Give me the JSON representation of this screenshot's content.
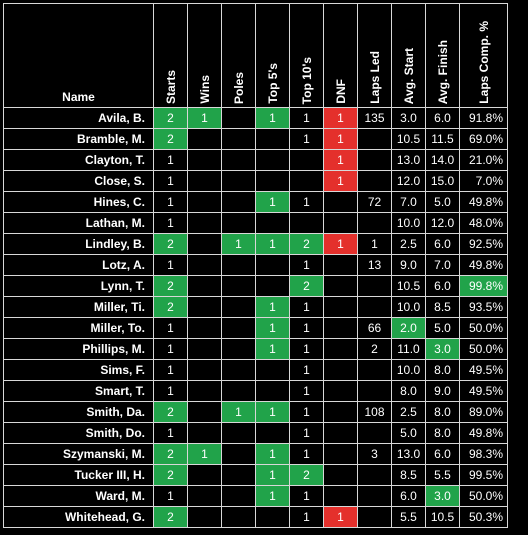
{
  "headers": {
    "name": "Name",
    "starts": "Starts",
    "wins": "Wins",
    "poles": "Poles",
    "top5": "Top 5's",
    "top10": "Top 10's",
    "dnf": "DNF",
    "laps_led": "Laps Led",
    "avg_start": "Avg. Start",
    "avg_finish": "Avg. Finish",
    "laps_comp": "Laps Comp. %"
  },
  "colors": {
    "highlight_green": "#21a34a",
    "highlight_red": "#e4302c"
  },
  "rows": [
    {
      "name": "Avila, B.",
      "starts": "2",
      "wins": "1",
      "poles": "",
      "top5": "1",
      "top10": "1",
      "dnf": "1",
      "laps_led": "135",
      "avg_start": "3.0",
      "avg_finish": "6.0",
      "laps_comp": "91.8%"
    },
    {
      "name": "Bramble, M.",
      "starts": "2",
      "wins": "",
      "poles": "",
      "top5": "",
      "top10": "1",
      "dnf": "1",
      "laps_led": "",
      "avg_start": "10.5",
      "avg_finish": "11.5",
      "laps_comp": "69.0%"
    },
    {
      "name": "Clayton, T.",
      "starts": "1",
      "wins": "",
      "poles": "",
      "top5": "",
      "top10": "",
      "dnf": "1",
      "laps_led": "",
      "avg_start": "13.0",
      "avg_finish": "14.0",
      "laps_comp": "21.0%"
    },
    {
      "name": "Close, S.",
      "starts": "1",
      "wins": "",
      "poles": "",
      "top5": "",
      "top10": "",
      "dnf": "1",
      "laps_led": "",
      "avg_start": "12.0",
      "avg_finish": "15.0",
      "laps_comp": "7.0%"
    },
    {
      "name": "Hines, C.",
      "starts": "1",
      "wins": "",
      "poles": "",
      "top5": "1",
      "top10": "1",
      "dnf": "",
      "laps_led": "72",
      "avg_start": "7.0",
      "avg_finish": "5.0",
      "laps_comp": "49.8%"
    },
    {
      "name": "Lathan, M.",
      "starts": "1",
      "wins": "",
      "poles": "",
      "top5": "",
      "top10": "",
      "dnf": "",
      "laps_led": "",
      "avg_start": "10.0",
      "avg_finish": "12.0",
      "laps_comp": "48.0%"
    },
    {
      "name": "Lindley, B.",
      "starts": "2",
      "wins": "",
      "poles": "1",
      "top5": "1",
      "top10": "2",
      "dnf": "1",
      "laps_led": "1",
      "avg_start": "2.5",
      "avg_finish": "6.0",
      "laps_comp": "92.5%"
    },
    {
      "name": "Lotz, A.",
      "starts": "1",
      "wins": "",
      "poles": "",
      "top5": "",
      "top10": "1",
      "dnf": "",
      "laps_led": "13",
      "avg_start": "9.0",
      "avg_finish": "7.0",
      "laps_comp": "49.8%"
    },
    {
      "name": "Lynn, T.",
      "starts": "2",
      "wins": "",
      "poles": "",
      "top5": "",
      "top10": "2",
      "dnf": "",
      "laps_led": "",
      "avg_start": "10.5",
      "avg_finish": "6.0",
      "laps_comp": "99.8%"
    },
    {
      "name": "Miller, Ti.",
      "starts": "2",
      "wins": "",
      "poles": "",
      "top5": "1",
      "top10": "1",
      "dnf": "",
      "laps_led": "",
      "avg_start": "10.0",
      "avg_finish": "8.5",
      "laps_comp": "93.5%"
    },
    {
      "name": "Miller, To.",
      "starts": "1",
      "wins": "",
      "poles": "",
      "top5": "1",
      "top10": "1",
      "dnf": "",
      "laps_led": "66",
      "avg_start": "2.0",
      "avg_finish": "5.0",
      "laps_comp": "50.0%"
    },
    {
      "name": "Phillips, M.",
      "starts": "1",
      "wins": "",
      "poles": "",
      "top5": "1",
      "top10": "1",
      "dnf": "",
      "laps_led": "2",
      "avg_start": "11.0",
      "avg_finish": "3.0",
      "laps_comp": "50.0%"
    },
    {
      "name": "Sims, F.",
      "starts": "1",
      "wins": "",
      "poles": "",
      "top5": "",
      "top10": "1",
      "dnf": "",
      "laps_led": "",
      "avg_start": "10.0",
      "avg_finish": "8.0",
      "laps_comp": "49.5%"
    },
    {
      "name": "Smart, T.",
      "starts": "1",
      "wins": "",
      "poles": "",
      "top5": "",
      "top10": "1",
      "dnf": "",
      "laps_led": "",
      "avg_start": "8.0",
      "avg_finish": "9.0",
      "laps_comp": "49.5%"
    },
    {
      "name": "Smith, Da.",
      "starts": "2",
      "wins": "",
      "poles": "1",
      "top5": "1",
      "top10": "1",
      "dnf": "",
      "laps_led": "108",
      "avg_start": "2.5",
      "avg_finish": "8.0",
      "laps_comp": "89.0%"
    },
    {
      "name": "Smith, Do.",
      "starts": "1",
      "wins": "",
      "poles": "",
      "top5": "",
      "top10": "1",
      "dnf": "",
      "laps_led": "",
      "avg_start": "5.0",
      "avg_finish": "8.0",
      "laps_comp": "49.8%"
    },
    {
      "name": "Szymanski, M.",
      "starts": "2",
      "wins": "1",
      "poles": "",
      "top5": "1",
      "top10": "1",
      "dnf": "",
      "laps_led": "3",
      "avg_start": "13.0",
      "avg_finish": "6.0",
      "laps_comp": "98.3%"
    },
    {
      "name": "Tucker III, H.",
      "starts": "2",
      "wins": "",
      "poles": "",
      "top5": "1",
      "top10": "2",
      "dnf": "",
      "laps_led": "",
      "avg_start": "8.5",
      "avg_finish": "5.5",
      "laps_comp": "99.5%"
    },
    {
      "name": "Ward, M.",
      "starts": "1",
      "wins": "",
      "poles": "",
      "top5": "1",
      "top10": "1",
      "dnf": "",
      "laps_led": "",
      "avg_start": "6.0",
      "avg_finish": "3.0",
      "laps_comp": "50.0%"
    },
    {
      "name": "Whitehead, G.",
      "starts": "2",
      "wins": "",
      "poles": "",
      "top5": "",
      "top10": "1",
      "dnf": "1",
      "laps_led": "",
      "avg_start": "5.5",
      "avg_finish": "10.5",
      "laps_comp": "50.3%"
    }
  ],
  "highlights": {
    "green": [
      "0.starts",
      "0.wins",
      "0.top5",
      "1.starts",
      "4.top5",
      "6.starts",
      "6.poles",
      "6.top5",
      "6.top10",
      "8.starts",
      "8.top10",
      "8.laps_comp",
      "9.starts",
      "9.top5",
      "10.top5",
      "10.avg_start",
      "11.top5",
      "11.avg_finish",
      "14.starts",
      "14.poles",
      "14.top5",
      "16.starts",
      "16.wins",
      "16.top5",
      "17.starts",
      "17.top5",
      "17.top10",
      "18.top5",
      "18.avg_finish",
      "19.starts"
    ],
    "red": [
      "0.dnf",
      "1.dnf",
      "2.dnf",
      "3.dnf",
      "6.dnf",
      "19.dnf"
    ]
  }
}
